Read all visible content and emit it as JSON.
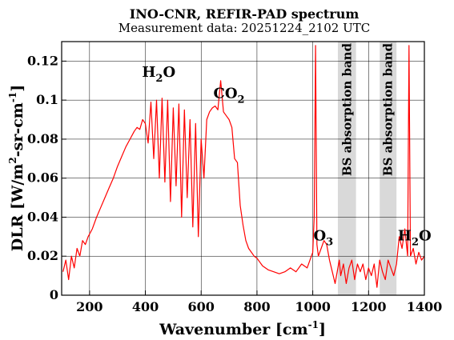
{
  "chart_data": {
    "type": "line",
    "title": "INO-CNR, REFIR-PAD spectrum",
    "subtitle": "Measurement data: 20251224_2102 UTC",
    "xlabel": "Wavenumber [cm",
    "xlabel_sup": "-1",
    "xlabel_end": "]",
    "ylabel": "DLR [W/m",
    "ylabel_sup1": "2",
    "ylabel_mid": "-sr-cm",
    "ylabel_sup2": "-1",
    "ylabel_end": "]",
    "xlim": [
      100,
      1400
    ],
    "ylim": [
      0,
      0.13
    ],
    "x_ticks": [
      200,
      400,
      600,
      800,
      1000,
      1200,
      1400
    ],
    "x_tick_labels": [
      "200",
      "400",
      "600",
      "800",
      "1000",
      "1200",
      "1400"
    ],
    "y_ticks": [
      0,
      0.02,
      0.04,
      0.06,
      0.08,
      0.1,
      0.12
    ],
    "y_tick_labels": [
      "0",
      "0.02",
      "0.04",
      "0.06",
      "0.08",
      "0.1",
      "0.12"
    ],
    "grid": true,
    "line_color": "#ff0000",
    "band_color": "#d9d9d9",
    "bands": [
      {
        "x0": 1090,
        "x1": 1155,
        "label": "BS absorption band"
      },
      {
        "x0": 1240,
        "x1": 1300,
        "label": "BS absorption band"
      }
    ],
    "annotations": [
      {
        "base": "H",
        "sub": "2",
        "tail": "O",
        "x": 448,
        "y": 0.112
      },
      {
        "base": "CO",
        "sub": "2",
        "tail": "",
        "x": 700,
        "y": 0.101
      },
      {
        "base": "O",
        "sub": "3",
        "tail": "",
        "x": 1038,
        "y": 0.028
      },
      {
        "base": "H",
        "sub": "2",
        "tail": "O",
        "x": 1365,
        "y": 0.028
      }
    ],
    "series": [
      {
        "x": [
          105,
          115,
          125,
          135,
          145,
          155,
          165,
          175,
          185,
          195,
          210,
          225,
          240,
          255,
          270,
          285,
          300,
          315,
          330,
          345,
          360,
          370,
          380,
          390,
          400,
          410,
          420,
          430,
          440,
          450,
          460,
          470,
          480,
          490,
          500,
          510,
          520,
          530,
          540,
          550,
          560,
          570,
          580,
          590,
          600,
          610,
          620,
          630,
          640,
          650,
          660,
          670,
          680,
          690,
          700,
          710,
          720,
          730,
          740,
          750,
          760,
          770,
          780,
          790,
          800,
          820,
          840,
          860,
          880,
          900,
          920,
          940,
          960,
          980,
          990,
          1000,
          1005,
          1010,
          1015,
          1020,
          1030,
          1040,
          1050,
          1060,
          1070,
          1080,
          1090,
          1095,
          1100,
          1110,
          1120,
          1130,
          1140,
          1150,
          1160,
          1170,
          1180,
          1190,
          1200,
          1210,
          1220,
          1230,
          1240,
          1250,
          1260,
          1270,
          1280,
          1290,
          1300,
          1310,
          1320,
          1330,
          1340,
          1345,
          1350,
          1360,
          1370,
          1380,
          1390,
          1400
        ],
        "y": [
          0.012,
          0.018,
          0.008,
          0.02,
          0.014,
          0.024,
          0.02,
          0.028,
          0.026,
          0.03,
          0.034,
          0.04,
          0.045,
          0.05,
          0.055,
          0.06,
          0.066,
          0.071,
          0.076,
          0.08,
          0.084,
          0.086,
          0.085,
          0.09,
          0.088,
          0.078,
          0.099,
          0.07,
          0.1,
          0.06,
          0.101,
          0.058,
          0.1,
          0.048,
          0.096,
          0.056,
          0.098,
          0.04,
          0.095,
          0.05,
          0.09,
          0.035,
          0.088,
          0.03,
          0.08,
          0.06,
          0.09,
          0.094,
          0.096,
          0.097,
          0.095,
          0.11,
          0.094,
          0.092,
          0.09,
          0.086,
          0.07,
          0.068,
          0.046,
          0.036,
          0.028,
          0.024,
          0.022,
          0.02,
          0.019,
          0.015,
          0.013,
          0.012,
          0.011,
          0.012,
          0.014,
          0.012,
          0.016,
          0.014,
          0.018,
          0.022,
          0.04,
          0.128,
          0.026,
          0.02,
          0.024,
          0.028,
          0.026,
          0.018,
          0.012,
          0.006,
          0.014,
          0.018,
          0.01,
          0.016,
          0.006,
          0.014,
          0.018,
          0.008,
          0.016,
          0.012,
          0.016,
          0.008,
          0.014,
          0.01,
          0.016,
          0.004,
          0.018,
          0.012,
          0.008,
          0.018,
          0.014,
          0.01,
          0.016,
          0.03,
          0.024,
          0.034,
          0.02,
          0.128,
          0.02,
          0.024,
          0.016,
          0.022,
          0.018,
          0.02
        ]
      }
    ]
  }
}
